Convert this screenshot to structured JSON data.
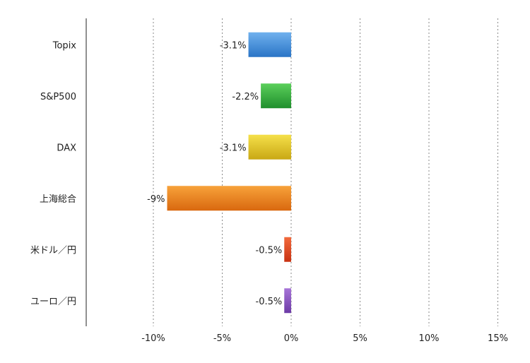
{
  "chart_data": {
    "type": "bar",
    "orientation": "horizontal",
    "categories": [
      "Topix",
      "S&P500",
      "DAX",
      "上海総合",
      "米ドル／円",
      "ユーロ／円"
    ],
    "values": [
      -3.1,
      -2.2,
      -3.1,
      -9,
      -0.5,
      -0.5
    ],
    "value_labels": [
      "-3.1%",
      "-2.2%",
      "-3.1%",
      "-9%",
      "-0.5%",
      "-0.5%"
    ],
    "bar_colors": [
      [
        "#6fb1ee",
        "#2a74c6"
      ],
      [
        "#5bcf5b",
        "#1f8f2c"
      ],
      [
        "#f5e04a",
        "#c9a814"
      ],
      [
        "#f7a23a",
        "#d9680f"
      ],
      [
        "#f26a3d",
        "#c83212"
      ],
      [
        "#a775d8",
        "#6c3aa6"
      ]
    ],
    "x_ticks": [
      -10,
      -5,
      0,
      5,
      10,
      15
    ],
    "x_tick_labels": [
      "-10%",
      "-5%",
      "0%",
      "5%",
      "10%",
      "15%"
    ],
    "xlim": [
      -15,
      15
    ],
    "title": "",
    "xlabel": "",
    "ylabel": "",
    "grid": "vertical dotted",
    "legend": "none"
  }
}
